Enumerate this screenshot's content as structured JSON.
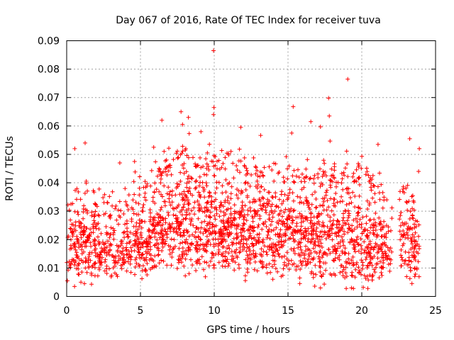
{
  "chart_data": {
    "type": "scatter",
    "title": "Day 067 of 2016, Rate Of TEC Index for receiver tuva",
    "xlabel": "GPS time / hours",
    "ylabel": "ROTI / TECUs",
    "xlim": [
      0,
      25
    ],
    "ylim": [
      0,
      0.09
    ],
    "x_ticks": [
      "0",
      "5",
      "10",
      "15",
      "20",
      "25"
    ],
    "y_ticks": [
      "0",
      "0.01",
      "0.02",
      "0.03",
      "0.04",
      "0.05",
      "0.06",
      "0.07",
      "0.08",
      "0.09"
    ],
    "grid": true,
    "marker": "plus",
    "color": "#ff0000",
    "envelope": {
      "x": [
        0,
        0.5,
        1,
        1.5,
        2,
        2.5,
        3,
        3.5,
        4,
        4.5,
        5,
        5.5,
        6,
        6.5,
        7,
        7.5,
        8,
        8.5,
        9,
        9.5,
        10,
        10.5,
        11,
        11.5,
        12,
        12.5,
        13,
        13.5,
        14,
        14.5,
        15,
        15.5,
        16,
        16.5,
        17,
        17.5,
        18,
        18.5,
        19,
        19.5,
        20,
        20.5,
        21,
        21.5,
        22,
        22.5,
        23,
        23.5,
        23.9
      ],
      "typical_low": [
        0.009,
        0.008,
        0.007,
        0.007,
        0.007,
        0.007,
        0.007,
        0.007,
        0.008,
        0.008,
        0.009,
        0.009,
        0.01,
        0.01,
        0.01,
        0.011,
        0.011,
        0.01,
        0.01,
        0.01,
        0.01,
        0.01,
        0.01,
        0.009,
        0.009,
        0.009,
        0.009,
        0.009,
        0.009,
        0.008,
        0.008,
        0.008,
        0.008,
        0.008,
        0.007,
        0.007,
        0.007,
        0.007,
        0.007,
        0.007,
        0.007,
        0.007,
        0.008,
        0.008,
        0.009,
        0.009,
        0.009,
        0.009,
        0.009
      ],
      "typical_high": [
        0.03,
        0.035,
        0.037,
        0.035,
        0.032,
        0.033,
        0.031,
        0.03,
        0.031,
        0.034,
        0.036,
        0.038,
        0.04,
        0.043,
        0.046,
        0.048,
        0.05,
        0.047,
        0.044,
        0.045,
        0.046,
        0.044,
        0.045,
        0.044,
        0.043,
        0.042,
        0.042,
        0.043,
        0.042,
        0.04,
        0.043,
        0.042,
        0.04,
        0.041,
        0.04,
        0.043,
        0.042,
        0.04,
        0.044,
        0.042,
        0.041,
        0.04,
        0.038,
        0.034,
        0.025,
        0.035,
        0.038,
        0.03,
        0.028
      ],
      "density": [
        0.6,
        0.8,
        1,
        0.9,
        0.8,
        0.8,
        0.7,
        0.6,
        0.7,
        0.8,
        1,
        1,
        1,
        1,
        1,
        1,
        1,
        1,
        1,
        1,
        1,
        1,
        1,
        1,
        1,
        1,
        1,
        1,
        1,
        1,
        1,
        1,
        1,
        1,
        1,
        1,
        1,
        1,
        1,
        1,
        1,
        1,
        1,
        0.9,
        0.3,
        0.8,
        0.9,
        0.8,
        0.6
      ]
    },
    "gaps": [
      [
        22.05,
        22.55
      ]
    ],
    "approx_point_count": 14000,
    "outliers": [
      {
        "x": 9.95,
        "y": 0.0865
      },
      {
        "x": 19.05,
        "y": 0.0765
      },
      {
        "x": 17.75,
        "y": 0.0698
      },
      {
        "x": 15.35,
        "y": 0.0668
      },
      {
        "x": 9.98,
        "y": 0.0665
      },
      {
        "x": 7.75,
        "y": 0.065
      },
      {
        "x": 9.95,
        "y": 0.064
      },
      {
        "x": 17.8,
        "y": 0.0635
      },
      {
        "x": 8.25,
        "y": 0.063
      },
      {
        "x": 6.45,
        "y": 0.062
      },
      {
        "x": 16.55,
        "y": 0.0615
      },
      {
        "x": 17.2,
        "y": 0.0597
      },
      {
        "x": 11.8,
        "y": 0.0595
      },
      {
        "x": 9.1,
        "y": 0.058
      },
      {
        "x": 7.85,
        "y": 0.0605
      },
      {
        "x": 15.25,
        "y": 0.0575
      },
      {
        "x": 13.15,
        "y": 0.0567
      },
      {
        "x": 17.85,
        "y": 0.0547
      },
      {
        "x": 1.25,
        "y": 0.054
      },
      {
        "x": 23.25,
        "y": 0.0555
      },
      {
        "x": 0.55,
        "y": 0.052
      },
      {
        "x": 23.9,
        "y": 0.052
      },
      {
        "x": 5.9,
        "y": 0.0525
      },
      {
        "x": 21.1,
        "y": 0.0535
      },
      {
        "x": 23.85,
        "y": 0.044
      },
      {
        "x": 3.6,
        "y": 0.047
      },
      {
        "x": 4.6,
        "y": 0.0475
      },
      {
        "x": 15.8,
        "y": 0.0045
      },
      {
        "x": 17.2,
        "y": 0.003
      },
      {
        "x": 19.3,
        "y": 0.003
      },
      {
        "x": 20.1,
        "y": 0.0032
      },
      {
        "x": 23.4,
        "y": 0.0045
      },
      {
        "x": 0.05,
        "y": 0.0055
      },
      {
        "x": 1.2,
        "y": 0.0045
      }
    ]
  }
}
